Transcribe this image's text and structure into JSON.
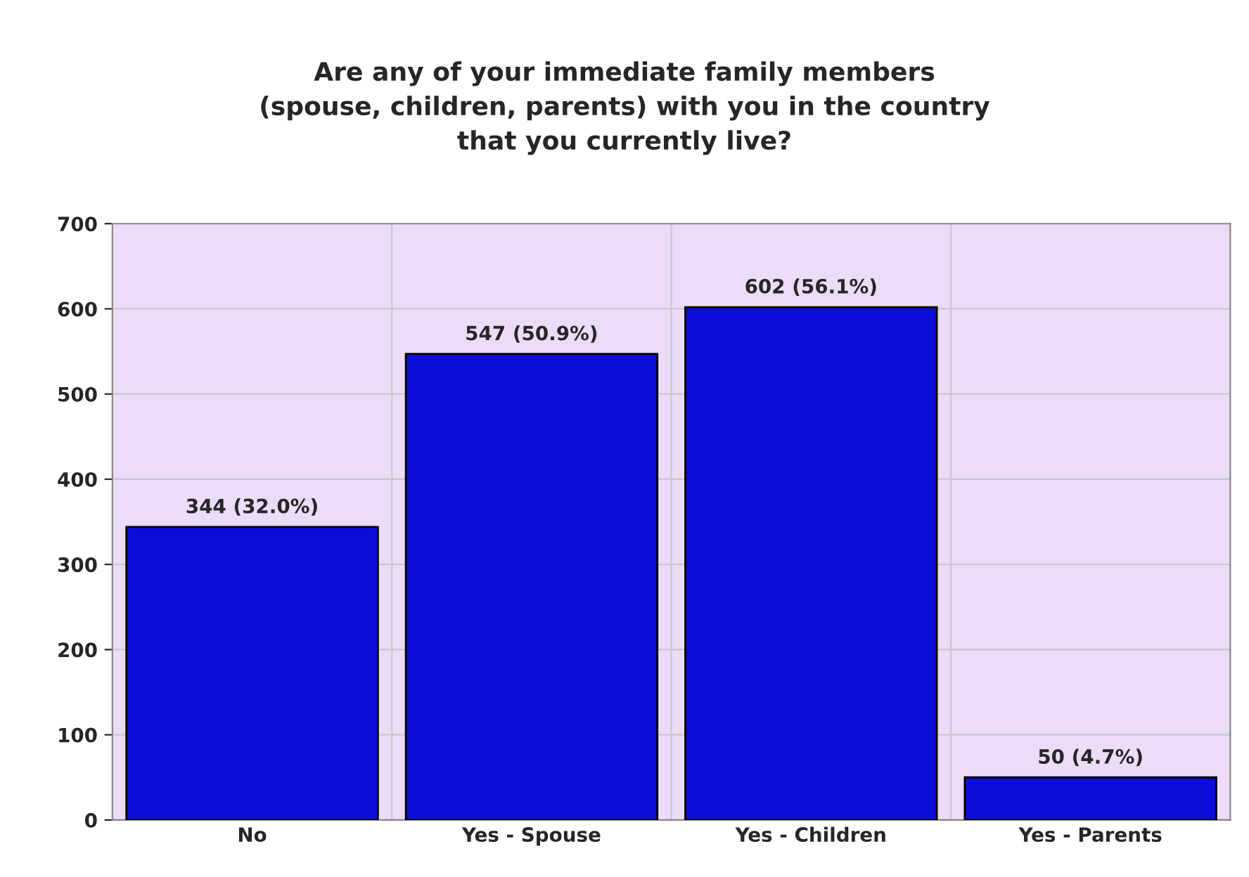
{
  "chart_data": {
    "type": "bar",
    "title": "Are any of your immediate family members\n(spouse, children, parents) with you in the country\nthat you currently live?",
    "categories": [
      "No",
      "Yes - Spouse",
      "Yes - Children",
      "Yes - Parents"
    ],
    "values": [
      344,
      547,
      602,
      50
    ],
    "value_labels": [
      "344 (32.0%)",
      "547 (50.9%)",
      "602 (56.1%)",
      "50 (4.7%)"
    ],
    "color": "#0c0cd8",
    "ylim": [
      0,
      700
    ],
    "yticks": [
      0,
      100,
      200,
      300,
      400,
      500,
      600,
      700
    ],
    "grid": true
  }
}
